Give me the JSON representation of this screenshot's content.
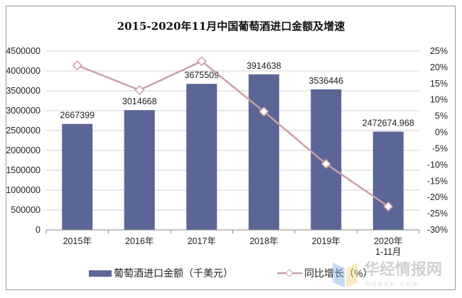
{
  "chart_data": {
    "type": "bar",
    "title": "2015-2020年11月中国葡萄酒进口金额及增速",
    "categories": [
      "2015年",
      "2016年",
      "2017年",
      "2018年",
      "2019年",
      "2020年1-11月"
    ],
    "category_lines": [
      [
        "2015年"
      ],
      [
        "2016年"
      ],
      [
        "2017年"
      ],
      [
        "2018年"
      ],
      [
        "2019年"
      ],
      [
        "2020年",
        "1-11月"
      ]
    ],
    "series": [
      {
        "name": "葡萄酒进口金额（千美元）",
        "type": "bar",
        "axis": "left",
        "color": "#5b6596",
        "values": [
          2667399,
          3014668,
          3675509,
          3914638,
          3536446,
          2472674.968
        ],
        "labels": [
          "2667399",
          "3014668",
          "3675509",
          "3914638",
          "3536446",
          "2472674.968"
        ]
      },
      {
        "name": "同比增长（%）",
        "type": "line",
        "axis": "right",
        "color": "#c9a0a6",
        "values": [
          20.6,
          13.0,
          21.9,
          6.4,
          -9.7,
          -22.8
        ]
      }
    ],
    "y_left": {
      "min": 0,
      "max": 4500000,
      "step": 500000,
      "ticks": [
        "0",
        "500000",
        "1000000",
        "1500000",
        "2000000",
        "2500000",
        "3000000",
        "3500000",
        "4000000",
        "4500000"
      ]
    },
    "y_right": {
      "min": -30,
      "max": 25,
      "step": 5,
      "ticks": [
        "-30%",
        "-25%",
        "-20%",
        "-15%",
        "-10%",
        "-5%",
        "0%",
        "5%",
        "10%",
        "15%",
        "20%",
        "25%"
      ]
    },
    "grid": true,
    "legend": "bottom",
    "watermark": {
      "text": "华经情报网",
      "sub": "huaon.com"
    }
  }
}
